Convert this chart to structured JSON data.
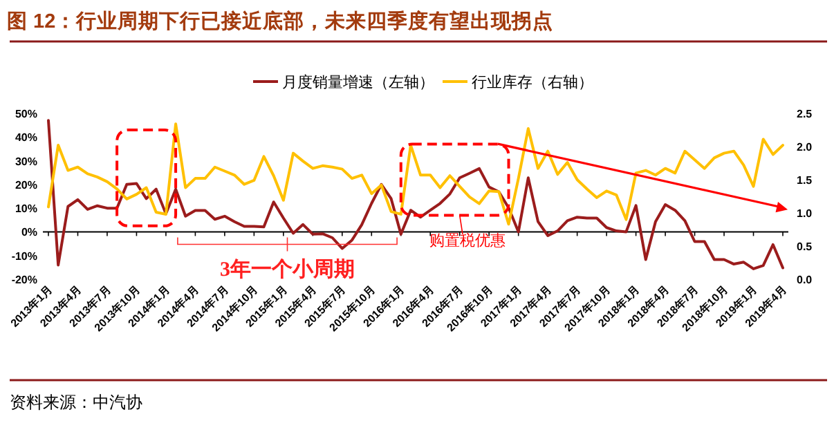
{
  "chart_data": {
    "type": "line",
    "title": "图 12：行业周期下行已接近底部，未来四季度有望出现拐点",
    "categories": [
      "2013年1月",
      null,
      null,
      "2013年4月",
      null,
      null,
      "2013年7月",
      null,
      null,
      "2013年10月",
      null,
      null,
      "2014年1月",
      null,
      null,
      "2014年4月",
      null,
      null,
      "2014年7月",
      null,
      null,
      "2014年10月",
      null,
      null,
      "2015年1月",
      null,
      null,
      "2015年4月",
      null,
      null,
      "2015年7月",
      null,
      null,
      "2015年10月",
      null,
      null,
      "2016年1月",
      null,
      null,
      "2016年4月",
      null,
      null,
      "2016年7月",
      null,
      null,
      "2016年10月",
      null,
      null,
      "2017年1月",
      null,
      null,
      "2017年4月",
      null,
      null,
      "2017年7月",
      null,
      null,
      "2017年10月",
      null,
      null,
      "2018年1月",
      null,
      null,
      "2018年4月",
      null,
      null,
      "2018年7月",
      null,
      null,
      "2018年10月",
      null,
      null,
      "2019年1月",
      null,
      null,
      "2019年4月"
    ],
    "series": [
      {
        "name": "月度销量增速（左轴）",
        "color": "#9b1c1c",
        "axis": "y",
        "values": [
          47,
          -14,
          10.7,
          13.6,
          9.5,
          11,
          10,
          10,
          20,
          20.4,
          14,
          18,
          7.6,
          18,
          6.6,
          9,
          9,
          5.3,
          6.6,
          4.3,
          2.3,
          2.3,
          2.1,
          12.6,
          5.8,
          -0.6,
          3.1,
          -1,
          -0.8,
          -2.5,
          -7,
          -3.5,
          3,
          12,
          20,
          14,
          -1,
          9.1,
          6.2,
          9.1,
          12,
          16,
          22.8,
          24.7,
          26.7,
          18.9,
          16.9,
          10.1,
          0,
          22.8,
          4.3,
          -1.6,
          0.4,
          4.7,
          6.2,
          5.8,
          5.8,
          1.8,
          0.4,
          0,
          11.1,
          -11.7,
          4.3,
          11.5,
          9.1,
          4.7,
          -4.1,
          -4.1,
          -11.7,
          -11.7,
          -13.6,
          -12.8,
          -15.6,
          -14.2,
          -5.4,
          -15.2
        ]
      },
      {
        "name": "行业库存（右轴）",
        "color": "#ffc000",
        "axis": "y2",
        "values": [
          1.09,
          2.02,
          1.64,
          1.69,
          1.59,
          1.54,
          1.47,
          1.36,
          1.21,
          1.28,
          1.38,
          1.01,
          0.98,
          2.34,
          1.38,
          1.52,
          1.52,
          1.69,
          1.63,
          1.57,
          1.43,
          1.49,
          1.85,
          1.56,
          1.19,
          1.9,
          1.78,
          1.67,
          1.71,
          1.69,
          1.66,
          1.52,
          1.57,
          1.29,
          1.42,
          1.02,
          0.98,
          2.02,
          1.57,
          1.57,
          1.38,
          1.56,
          1.4,
          1.24,
          1.14,
          1.33,
          1.32,
          0.83,
          1.52,
          2.27,
          1.67,
          1.93,
          1.58,
          1.76,
          1.5,
          1.36,
          1.23,
          1.33,
          1.27,
          0.9,
          1.6,
          1.64,
          1.57,
          1.67,
          1.6,
          1.93,
          1.8,
          1.67,
          1.83,
          1.9,
          1.93,
          1.72,
          1.4,
          2.11,
          1.88,
          2.02
        ]
      }
    ],
    "ylim": [
      -20,
      50
    ],
    "yticks": [
      {
        "value": -20,
        "label": "-20%"
      },
      {
        "value": -10,
        "label": "-10%"
      },
      {
        "value": 0,
        "label": "0%"
      },
      {
        "value": 10,
        "label": "10%"
      },
      {
        "value": 20,
        "label": "20%"
      },
      {
        "value": 30,
        "label": "30%"
      },
      {
        "value": 40,
        "label": "40%"
      },
      {
        "value": 50,
        "label": "50%"
      }
    ],
    "y2lim": [
      0,
      2.5
    ],
    "y2ticks": [
      {
        "value": 0,
        "label": "0.0"
      },
      {
        "value": 0.5,
        "label": "0.5"
      },
      {
        "value": 1,
        "label": "1.0"
      },
      {
        "value": 1.5,
        "label": "1.5"
      },
      {
        "value": 2,
        "label": "2.0"
      },
      {
        "value": 2.5,
        "label": "2.5"
      }
    ],
    "legend": "top",
    "annotations": [
      "3年一个小周期",
      "购置税优惠",
      "资料来源：中汽协"
    ]
  }
}
